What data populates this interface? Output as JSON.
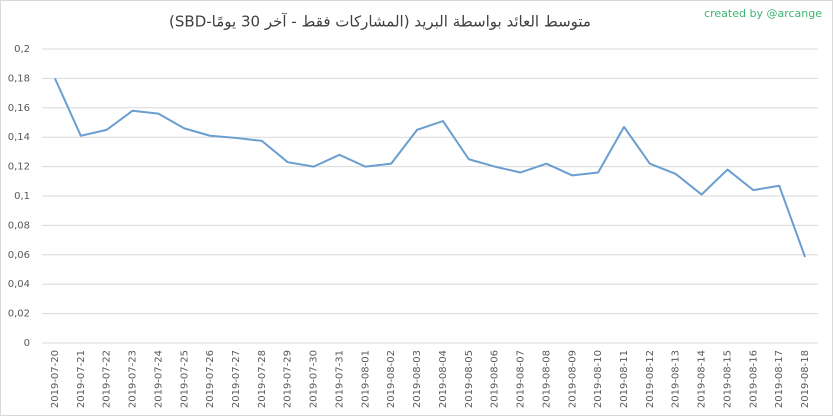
{
  "chart_data": {
    "type": "line",
    "title": "متوسط العائد بواسطة البريد (المشاركات فقط - آخر 30 يومًا-SBD)",
    "annotation": "created by @arcange",
    "categories": [
      "2019-07-20",
      "2019-07-21",
      "2019-07-22",
      "2019-07-23",
      "2019-07-24",
      "2019-07-25",
      "2019-07-26",
      "2019-07-27",
      "2019-07-28",
      "2019-07-29",
      "2019-07-30",
      "2019-07-31",
      "2019-08-01",
      "2019-08-02",
      "2019-08-03",
      "2019-08-04",
      "2019-08-05",
      "2019-08-06",
      "2019-08-07",
      "2019-08-08",
      "2019-08-09",
      "2019-08-10",
      "2019-08-11",
      "2019-08-12",
      "2019-08-13",
      "2019-08-14",
      "2019-08-15",
      "2019-08-16",
      "2019-08-17",
      "2019-08-18"
    ],
    "values": [
      0.18,
      0.141,
      0.145,
      0.158,
      0.156,
      0.146,
      0.141,
      0.1395,
      0.1375,
      0.123,
      0.12,
      0.128,
      0.12,
      0.122,
      0.145,
      0.151,
      0.125,
      0.12,
      0.116,
      0.122,
      0.114,
      0.116,
      0.147,
      0.122,
      0.115,
      0.101,
      0.118,
      0.104,
      0.107,
      0.0585
    ],
    "color": "#6a9ed0",
    "ylim": [
      0,
      0.2
    ],
    "yticks": [
      0,
      {
        "value": 0.02,
        "label": "0,02"
      },
      {
        "value": 0.04,
        "label": "0,04"
      },
      {
        "value": 0.06,
        "label": "0,06"
      },
      {
        "value": 0.08,
        "label": "0,08"
      },
      {
        "value": 0.1,
        "label": "0,1"
      },
      {
        "value": 0.12,
        "label": "0,12"
      },
      {
        "value": 0.14,
        "label": "0,14"
      },
      {
        "value": 0.16,
        "label": "0,16"
      },
      {
        "value": 0.18,
        "label": "0,18"
      },
      {
        "value": 0.2,
        "label": "0,2"
      }
    ],
    "grid": true
  }
}
